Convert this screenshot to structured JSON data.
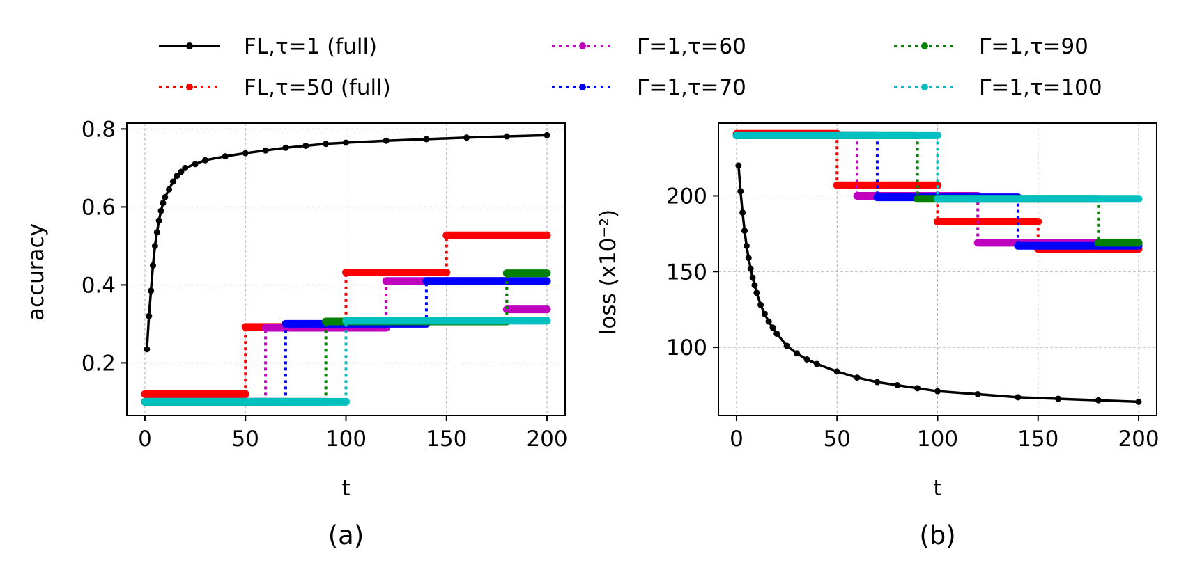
{
  "legend": [
    {
      "label": "FL,τ=1 (full)",
      "color": "#000000",
      "style": "solid",
      "marker": "dot"
    },
    {
      "label": "FL,τ=50 (full)",
      "color": "#ff0000",
      "style": "dotted",
      "marker": "dot"
    },
    {
      "label": "Γ=1,τ=60",
      "color": "#bf00bf",
      "style": "dotted",
      "marker": "dot"
    },
    {
      "label": "Γ=1,τ=70",
      "color": "#0000ff",
      "style": "dotted",
      "marker": "dot"
    },
    {
      "label": "Γ=1,τ=90",
      "color": "#008000",
      "style": "dotted",
      "marker": "dot"
    },
    {
      "label": "Γ=1,τ=100",
      "color": "#00bfbf",
      "style": "dotted",
      "marker": "dot"
    }
  ],
  "chart_data": [
    {
      "id": "a",
      "type": "line",
      "caption": "(a)",
      "xlabel": "t",
      "ylabel": "accuracy",
      "xlim": [
        -9,
        209
      ],
      "ylim": [
        0.065,
        0.815
      ],
      "xticks": [
        0,
        50,
        100,
        150,
        200
      ],
      "yticks": [
        0.2,
        0.4,
        0.6,
        0.8
      ],
      "ytick_labels": [
        "0.2",
        "0.4",
        "0.6",
        "0.8"
      ],
      "grid": true,
      "series": [
        {
          "name": "FL,τ=1 (full)",
          "kind": "curve",
          "color": "#000000",
          "x": [
            1,
            2,
            3,
            4,
            5,
            6,
            7,
            8,
            9,
            10,
            12,
            14,
            16,
            18,
            20,
            25,
            30,
            40,
            50,
            60,
            70,
            80,
            90,
            100,
            120,
            140,
            160,
            180,
            200
          ],
          "y": [
            0.235,
            0.32,
            0.385,
            0.45,
            0.5,
            0.535,
            0.565,
            0.59,
            0.61,
            0.625,
            0.645,
            0.665,
            0.68,
            0.69,
            0.7,
            0.71,
            0.72,
            0.73,
            0.738,
            0.745,
            0.752,
            0.757,
            0.762,
            0.765,
            0.77,
            0.774,
            0.778,
            0.781,
            0.784
          ]
        },
        {
          "name": "FL,τ=50 (full)",
          "kind": "step",
          "color": "#ff0000",
          "breaks": [
            0,
            50,
            100,
            150,
            200
          ],
          "levels": [
            0.12,
            0.292,
            0.432,
            0.527
          ]
        },
        {
          "name": "Γ=1,τ=60",
          "kind": "step",
          "color": "#bf00bf",
          "breaks": [
            0,
            60,
            120,
            180,
            200
          ],
          "levels": [
            0.1,
            0.29,
            0.41,
            0.337
          ]
        },
        {
          "name": "Γ=1,τ=70",
          "kind": "step",
          "color": "#0000ff",
          "breaks": [
            0,
            70,
            140,
            200
          ],
          "levels": [
            0.1,
            0.3,
            0.41
          ]
        },
        {
          "name": "Γ=1,τ=90",
          "kind": "step",
          "color": "#008000",
          "breaks": [
            0,
            90,
            180,
            200
          ],
          "levels": [
            0.1,
            0.306,
            0.43
          ]
        },
        {
          "name": "Γ=1,τ=100",
          "kind": "step",
          "color": "#00bfbf",
          "breaks": [
            0,
            100,
            200
          ],
          "levels": [
            0.1,
            0.308
          ]
        }
      ]
    },
    {
      "id": "b",
      "type": "line",
      "caption": "(b)",
      "xlabel": "t",
      "ylabel": "loss (x10⁻²)",
      "xlim": [
        -9,
        209
      ],
      "ylim": [
        55,
        248
      ],
      "xticks": [
        0,
        50,
        100,
        150,
        200
      ],
      "yticks": [
        100,
        150,
        200
      ],
      "ytick_labels": [
        "100",
        "150",
        "200"
      ],
      "grid": true,
      "series": [
        {
          "name": "FL,τ=1 (full)",
          "kind": "curve",
          "color": "#000000",
          "x": [
            1,
            2,
            3,
            4,
            5,
            6,
            7,
            8,
            9,
            10,
            12,
            14,
            16,
            18,
            20,
            25,
            30,
            35,
            40,
            50,
            60,
            70,
            80,
            90,
            100,
            120,
            140,
            160,
            180,
            200
          ],
          "y": [
            220,
            203,
            189,
            177,
            167,
            159,
            152,
            146,
            141,
            136,
            128,
            122,
            117,
            113,
            109,
            101,
            96,
            92,
            89,
            84,
            80,
            77,
            75,
            73,
            71,
            69,
            67,
            66,
            65,
            64
          ]
        },
        {
          "name": "FL,τ=50 (full)",
          "kind": "step",
          "color": "#ff0000",
          "breaks": [
            0,
            50,
            100,
            150,
            200
          ],
          "levels": [
            241,
            207,
            183,
            165
          ]
        },
        {
          "name": "Γ=1,τ=60",
          "kind": "step",
          "color": "#bf00bf",
          "breaks": [
            0,
            60,
            120,
            180,
            200
          ],
          "levels": [
            240,
            200,
            169,
            168
          ]
        },
        {
          "name": "Γ=1,τ=70",
          "kind": "step",
          "color": "#0000ff",
          "breaks": [
            0,
            70,
            140,
            200
          ],
          "levels": [
            240,
            199,
            167
          ]
        },
        {
          "name": "Γ=1,τ=90",
          "kind": "step",
          "color": "#008000",
          "breaks": [
            0,
            90,
            180,
            200
          ],
          "levels": [
            240,
            198,
            169
          ]
        },
        {
          "name": "Γ=1,τ=100",
          "kind": "step",
          "color": "#00bfbf",
          "breaks": [
            0,
            100,
            200
          ],
          "levels": [
            240,
            198
          ]
        }
      ]
    }
  ]
}
